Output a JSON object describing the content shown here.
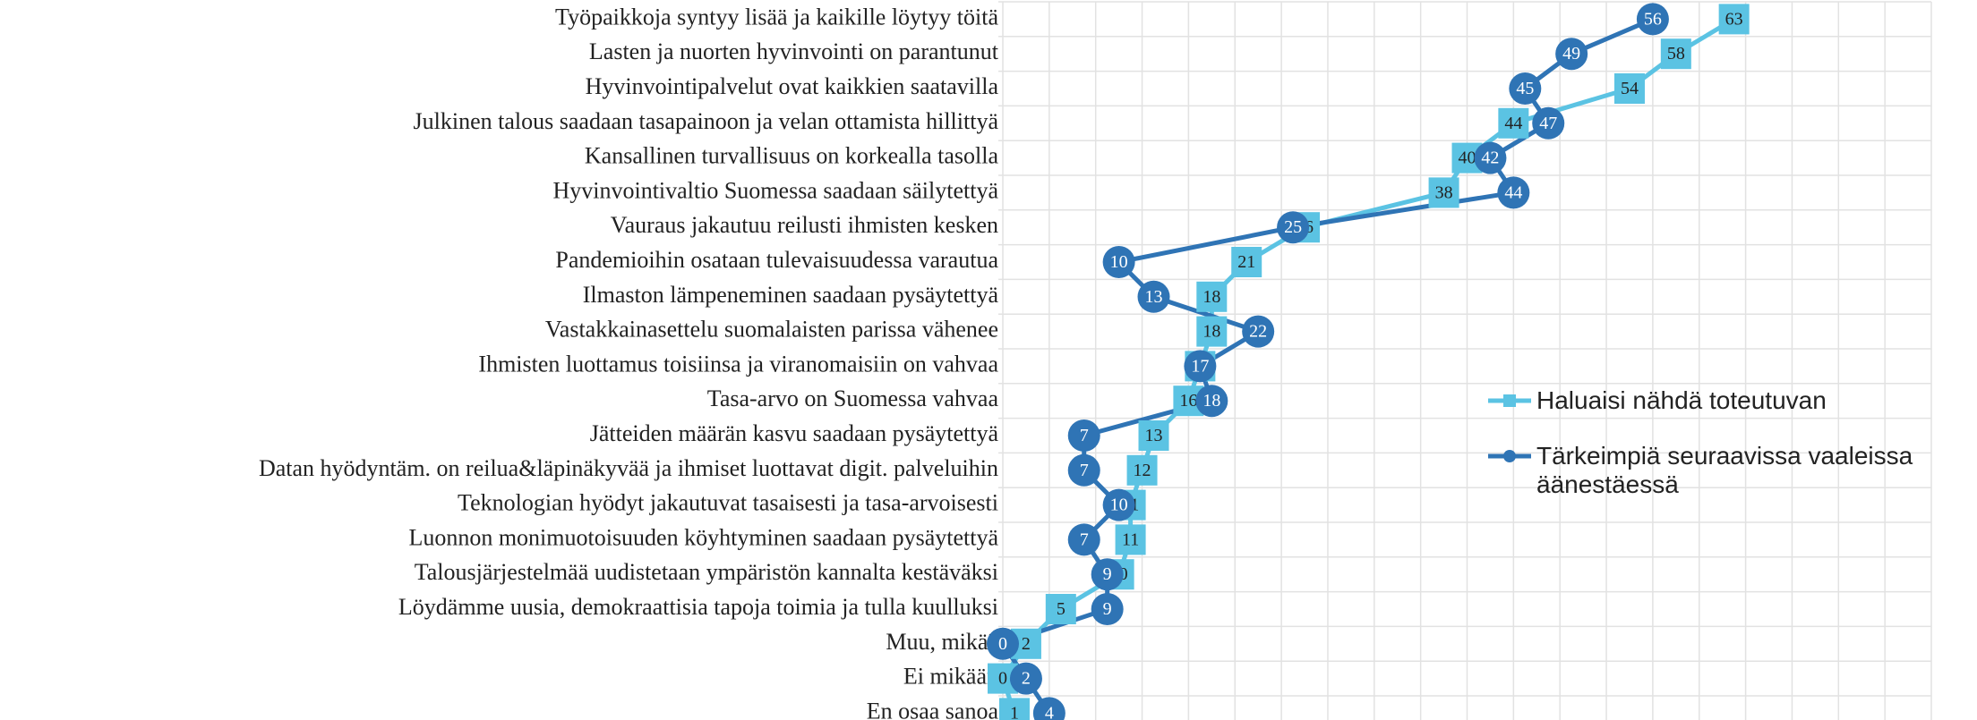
{
  "chart_data": {
    "type": "line",
    "orientation": "horizontal",
    "categories": [
      "Työpaikkoja syntyy lisää ja kaikille löytyy töitä",
      "Lasten ja nuorten hyvinvointi on parantunut",
      "Hyvinvointipalvelut ovat kaikkien saatavilla",
      "Julkinen talous saadaan tasapainoon ja velan ottamista hillittyä",
      "Kansallinen turvallisuus on korkealla tasolla",
      "Hyvinvointivaltio Suomessa saadaan säilytettyä",
      "Vauraus jakautuu reilusti ihmisten kesken",
      "Pandemioihin osataan tulevaisuudessa varautua",
      "Ilmaston lämpeneminen saadaan pysäytettyä",
      "Vastakkainasettelu suomalaisten parissa vähenee",
      "Ihmisten luottamus toisiinsa ja viranomaisiin on vahvaa",
      "Tasa-arvo on Suomessa vahvaa",
      "Jätteiden määrän kasvu saadaan pysäytettyä",
      "Datan hyödyntäm. on reilua&läpinäkyvää ja ihmiset luottavat digit. palveluihin",
      "Teknologian hyödyt jakautuvat tasaisesti ja tasa-arvoisesti",
      "Luonnon monimuotoisuuden köyhtyminen saadaan pysäytettyä",
      "Talousjärjestelmää uudistetaan ympäristön kannalta kestäväksi",
      "Löydämme uusia, demokraattisia tapoja toimia ja tulla kuulluksi",
      "Muu, mikä?",
      "Ei mikään",
      "En osaa sanoa"
    ],
    "series": [
      {
        "name": "Haluaisi nähdä toteutuvan",
        "color": "#5bc3e3",
        "marker": "square",
        "values": [
          63,
          58,
          54,
          44,
          40,
          38,
          26,
          21,
          18,
          18,
          17,
          16,
          13,
          12,
          11,
          11,
          10,
          5,
          2,
          0,
          1
        ]
      },
      {
        "name": "Tärkeimpiä seuraavissa vaaleissa äänestäessä",
        "color": "#2f74b5",
        "marker": "circle",
        "values": [
          56,
          49,
          45,
          47,
          42,
          44,
          25,
          10,
          13,
          22,
          17,
          18,
          7,
          7,
          10,
          7,
          9,
          9,
          0,
          2,
          4
        ]
      }
    ],
    "xlim": [
      0,
      80
    ],
    "xticks": [
      0,
      4,
      8,
      12,
      16,
      20,
      24,
      28,
      32,
      36,
      40,
      44,
      48,
      52,
      56,
      60,
      64,
      68,
      72,
      76,
      80
    ],
    "grid": true,
    "legend": "right"
  }
}
